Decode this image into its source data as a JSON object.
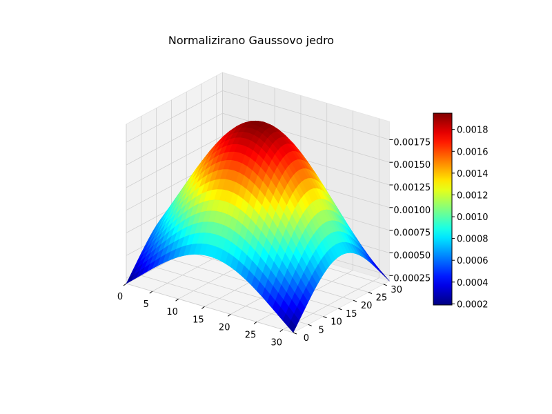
{
  "chart_data": {
    "type": "surface3d",
    "title": "Normalizirano Gaussovo jedro",
    "colormap": "jet",
    "grid": true,
    "x_ticks": [
      "0",
      "5",
      "10",
      "15",
      "20",
      "25",
      "30"
    ],
    "y_ticks": [
      "0",
      "5",
      "10",
      "15",
      "20",
      "25",
      "30"
    ],
    "z_ticks": [
      "0.00025",
      "0.00050",
      "0.00075",
      "0.00100",
      "0.00125",
      "0.00150",
      "0.00175"
    ],
    "colorbar_ticks": [
      "0.0002",
      "0.0004",
      "0.0006",
      "0.0008",
      "0.0010",
      "0.0012",
      "0.0014",
      "0.0016",
      "0.0018"
    ],
    "xlim": [
      0,
      32
    ],
    "ylim": [
      0,
      32
    ],
    "zlim": [
      0.00019,
      0.00195
    ],
    "surface": {
      "grid_size": 33,
      "center": 16,
      "sigma": 13.2,
      "z_min": 0.00019,
      "z_max": 0.00195
    }
  }
}
